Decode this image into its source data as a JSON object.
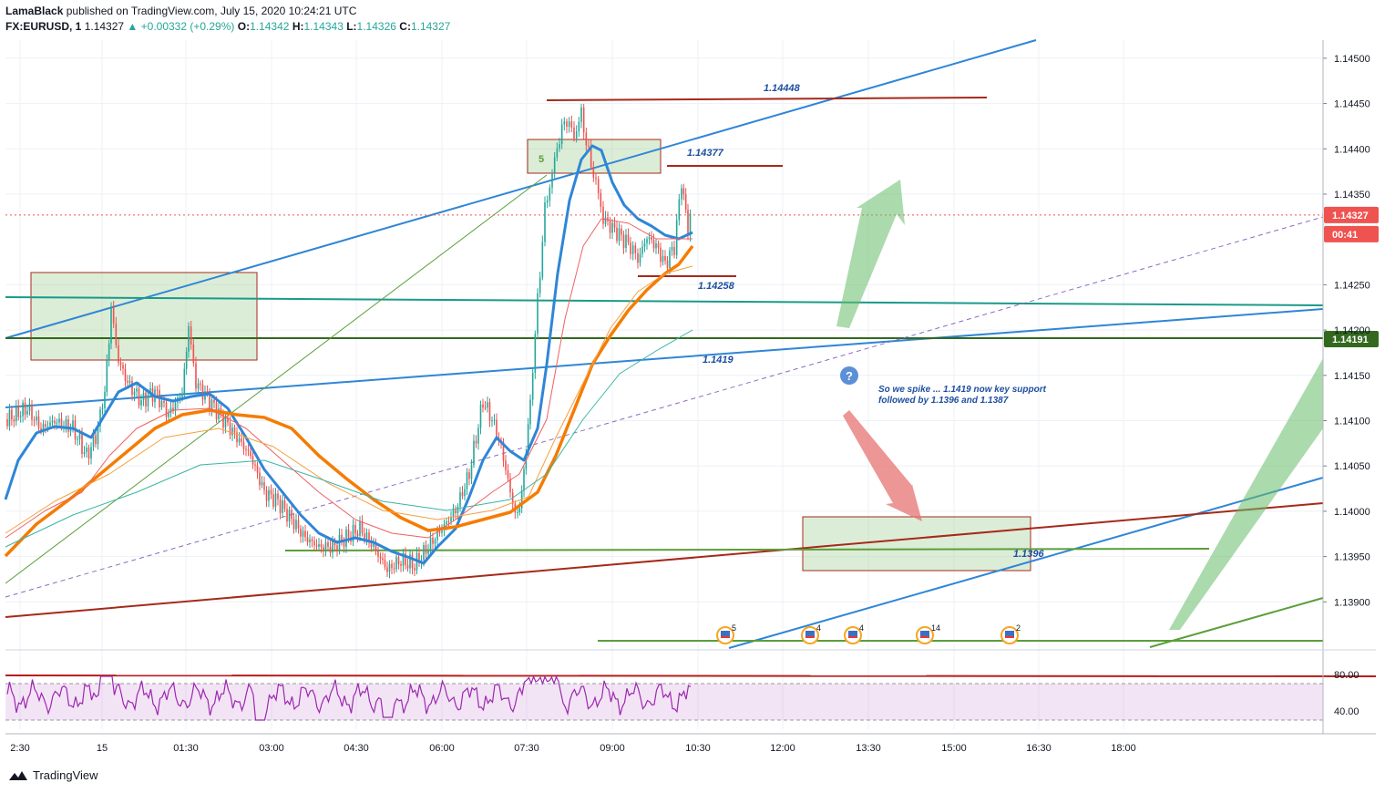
{
  "header": {
    "author": "LamaBlack",
    "published": "published on TradingView.com, July 15, 2020 10:24:21 UTC",
    "symbol": "FX:EURUSD, 1",
    "last": "1.14327",
    "change": "▲ +0.00332 (+0.29%)",
    "o_label": "O:",
    "o_val": "1.14342",
    "h_label": "H:",
    "h_val": "1.14343",
    "l_label": "L:",
    "l_val": "1.14326",
    "c_label": "C:",
    "c_val": "1.14327"
  },
  "chart_data": {
    "type": "line",
    "ylim": [
      1.1385,
      1.1452
    ],
    "y_ticks": [
      "1.14500",
      "1.14450",
      "1.14400",
      "1.14350",
      "1.14250",
      "1.14200",
      "1.14150",
      "1.14100",
      "1.14050",
      "1.14000",
      "1.13950",
      "1.13900"
    ],
    "y_tick_values": [
      1.145,
      1.1445,
      1.144,
      1.1435,
      1.1425,
      1.142,
      1.1415,
      1.141,
      1.1405,
      1.14,
      1.1395,
      1.139
    ],
    "x_ticks": [
      "2:30",
      "15",
      "01:30",
      "03:00",
      "04:30",
      "06:00",
      "07:30",
      "09:00",
      "10:30",
      "12:00",
      "13:30",
      "15:00",
      "16:30",
      "18:00"
    ],
    "current_price": {
      "label": "1.14327",
      "value": 1.14327,
      "color": "#ef5350"
    },
    "countdown": "00:41",
    "key_level": {
      "label": "1.14191",
      "value": 1.14191,
      "color": "#33691e"
    },
    "level_labels": [
      {
        "text": "1.14448",
        "value": 1.14448
      },
      {
        "text": "1.14377",
        "value": 1.14377
      },
      {
        "text": "1.14258",
        "value": 1.14258
      },
      {
        "text": "1.1419",
        "value": 1.1419
      },
      {
        "text": "1.1396",
        "value": 1.1396
      }
    ],
    "wave_label": "5",
    "annotation": [
      "So we spike ... 1.1419 now key support",
      "followed by 1.1396 and 1.1387"
    ],
    "question_mark": "?",
    "event_counts": [
      "5",
      "4",
      "4",
      "14",
      "2"
    ],
    "rsi": {
      "ylim": [
        20,
        100
      ],
      "ticks": [
        "80.00",
        "40.00"
      ],
      "tick_values": [
        80,
        40
      ],
      "upper": 70,
      "lower": 30
    },
    "colors": {
      "up": "#26a69a",
      "down": "#ef5350",
      "ema_blue": "#2f86d6",
      "ema_orange": "#f57c00",
      "rsi": "#9c27b0",
      "teal": "#1a9a8a",
      "darkred": "#a52a1a",
      "green": "#5b9e3a"
    }
  },
  "branding": {
    "logo_text": "TradingView"
  }
}
